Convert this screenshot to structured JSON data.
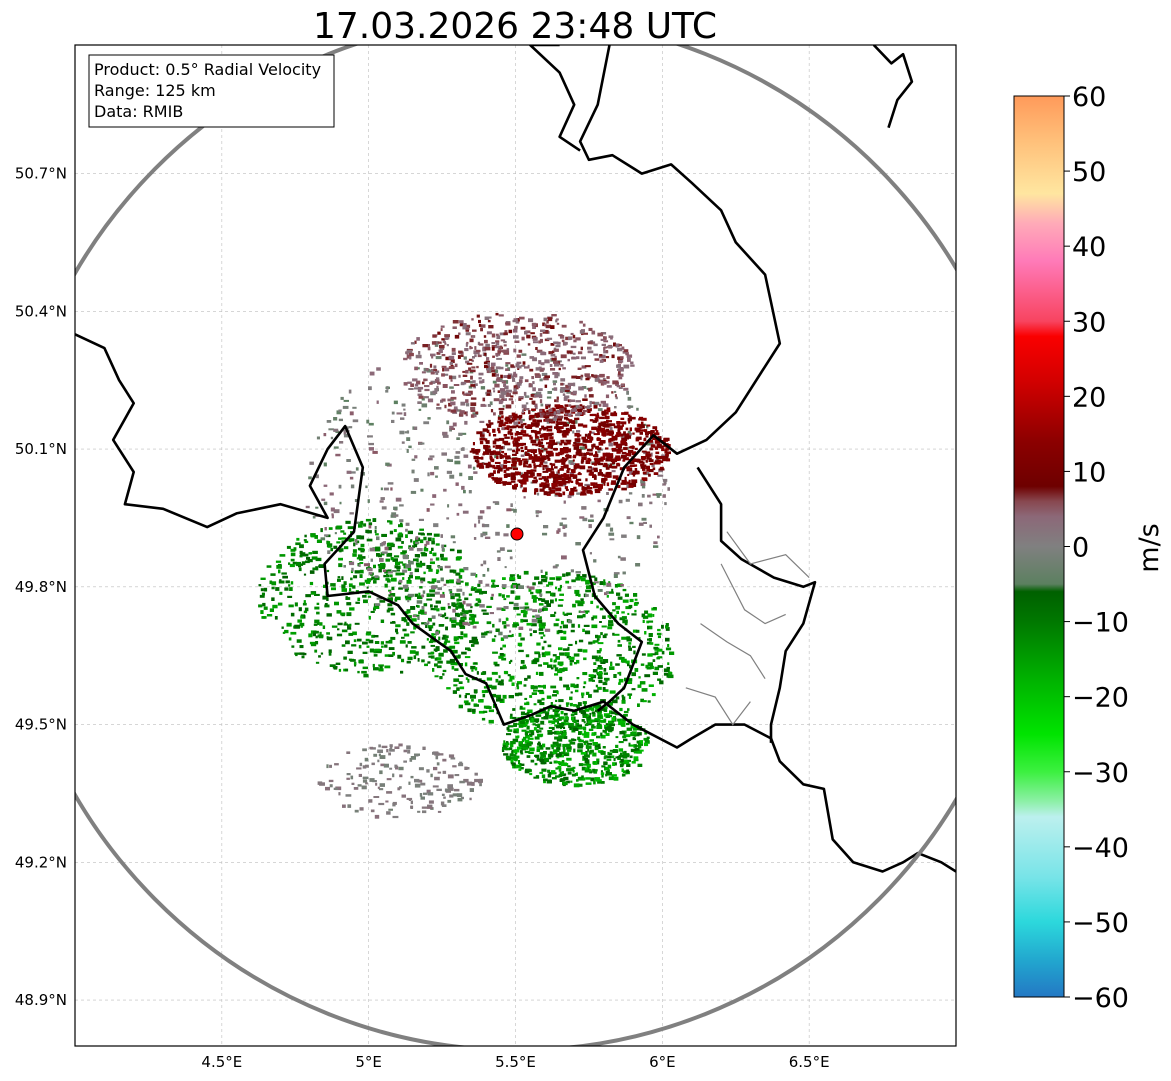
{
  "chart_data": {
    "type": "heatmap",
    "title": "17.03.2026 23:48 UTC",
    "info_box": [
      "Product: 0.5° Radial Velocity",
      "Range: 125 km",
      "Data: RMIB"
    ],
    "projection": "PlateCarree",
    "lon_range": [
      4.0,
      7.0
    ],
    "lat_range": [
      48.8,
      50.98
    ],
    "lon_ticks": [
      4.5,
      5.0,
      5.5,
      6.0,
      6.5
    ],
    "lon_tick_labels": [
      "4.5°E",
      "5°E",
      "5.5°E",
      "6°E",
      "6.5°E"
    ],
    "lat_ticks": [
      48.9,
      49.2,
      49.5,
      49.8,
      50.1,
      50.4,
      50.7
    ],
    "lat_tick_labels": [
      "48.9°N",
      "49.2°N",
      "49.5°N",
      "49.8°N",
      "50.1°N",
      "50.4°N",
      "50.7°N"
    ],
    "radar_site": {
      "lon": 5.505,
      "lat": 49.915,
      "marker_color": "#ff0000"
    },
    "range_ring_km": 125,
    "colorbar": {
      "label": "m/s",
      "range": [
        -60,
        60
      ],
      "ticks": [
        -60,
        -50,
        -40,
        -30,
        -20,
        -10,
        0,
        10,
        20,
        30,
        40,
        50,
        60
      ],
      "tick_labels": [
        "−60",
        "−50",
        "−40",
        "−30",
        "−20",
        "−10",
        "0",
        "10",
        "20",
        "30",
        "40",
        "50",
        "60"
      ],
      "stops": [
        {
          "value": -60,
          "color": "#2378c4"
        },
        {
          "value": -55,
          "color": "#22a8cf"
        },
        {
          "value": -50,
          "color": "#2cd8dc"
        },
        {
          "value": -44,
          "color": "#78e4e8"
        },
        {
          "value": -36,
          "color": "#bcf0ee"
        },
        {
          "value": -34,
          "color": "#8ef0a8"
        },
        {
          "value": -30,
          "color": "#3cf040"
        },
        {
          "value": -25,
          "color": "#00e400"
        },
        {
          "value": -18,
          "color": "#00b400"
        },
        {
          "value": -10,
          "color": "#007800"
        },
        {
          "value": -6,
          "color": "#006000"
        },
        {
          "value": -5,
          "color": "#5c8060"
        },
        {
          "value": 0,
          "color": "#808080"
        },
        {
          "value": 4,
          "color": "#8c6878"
        },
        {
          "value": 6,
          "color": "#884850"
        },
        {
          "value": 8,
          "color": "#6e0000"
        },
        {
          "value": 14,
          "color": "#8c0000"
        },
        {
          "value": 22,
          "color": "#d20000"
        },
        {
          "value": 28,
          "color": "#fa0000"
        },
        {
          "value": 30,
          "color": "#f84460"
        },
        {
          "value": 38,
          "color": "#ff7ab8"
        },
        {
          "value": 43,
          "color": "#ffaab8"
        },
        {
          "value": 47,
          "color": "#ffe6a0"
        },
        {
          "value": 54,
          "color": "#ffc07a"
        },
        {
          "value": 60,
          "color": "#ff9a5a"
        }
      ]
    },
    "velocity_regions": [
      {
        "name": "inbound-main",
        "lon": 5.62,
        "lat": 49.66,
        "rlon": 0.42,
        "rlat": 0.18,
        "vmin": -18,
        "vmax": -6,
        "density": 0.55
      },
      {
        "name": "inbound-west",
        "lon": 5.0,
        "lat": 49.78,
        "rlon": 0.38,
        "rlat": 0.17,
        "vmin": -16,
        "vmax": -6,
        "density": 0.45
      },
      {
        "name": "inbound-south",
        "lon": 5.7,
        "lat": 49.46,
        "rlon": 0.25,
        "rlat": 0.09,
        "vmin": -20,
        "vmax": -6,
        "density": 0.4
      },
      {
        "name": "near-zero",
        "lon": 5.4,
        "lat": 50.02,
        "rlon": 0.62,
        "rlat": 0.33,
        "vmin": -5,
        "vmax": 5,
        "density": 0.45
      },
      {
        "name": "outbound-main",
        "lon": 5.68,
        "lat": 50.1,
        "rlon": 0.34,
        "rlat": 0.1,
        "vmin": 8,
        "vmax": 14,
        "density": 0.7
      },
      {
        "name": "outbound-north",
        "lon": 5.5,
        "lat": 50.28,
        "rlon": 0.4,
        "rlat": 0.12,
        "vmin": 2,
        "vmax": 8,
        "density": 0.45
      },
      {
        "name": "trail-southwest",
        "lon": 5.1,
        "lat": 49.38,
        "rlon": 0.28,
        "rlat": 0.08,
        "vmin": -2,
        "vmax": 3,
        "density": 0.12
      }
    ],
    "borders": [
      [
        [
          4.0,
          50.35
        ],
        [
          4.1,
          50.32
        ],
        [
          4.15,
          50.25
        ],
        [
          4.2,
          50.2
        ],
        [
          4.13,
          50.12
        ],
        [
          4.2,
          50.05
        ],
        [
          4.17,
          49.98
        ],
        [
          4.3,
          49.97
        ],
        [
          4.45,
          49.93
        ],
        [
          4.55,
          49.96
        ],
        [
          4.7,
          49.98
        ],
        [
          4.86,
          49.95
        ],
        [
          4.8,
          50.02
        ],
        [
          4.86,
          50.1
        ],
        [
          4.92,
          50.15
        ],
        [
          4.98,
          50.06
        ],
        [
          4.95,
          49.92
        ],
        [
          4.85,
          49.85
        ],
        [
          4.86,
          49.78
        ],
        [
          5.0,
          49.79
        ],
        [
          5.1,
          49.76
        ],
        [
          5.15,
          49.72
        ],
        [
          5.28,
          49.66
        ],
        [
          5.33,
          49.61
        ],
        [
          5.4,
          49.59
        ],
        [
          5.46,
          49.5
        ],
        [
          5.55,
          49.52
        ],
        [
          5.62,
          49.54
        ],
        [
          5.7,
          49.53
        ],
        [
          5.8,
          49.55
        ],
        [
          5.9,
          49.5
        ],
        [
          6.05,
          49.45
        ],
        [
          6.1,
          49.47
        ],
        [
          6.18,
          49.5
        ],
        [
          6.28,
          49.5
        ],
        [
          6.37,
          49.47
        ],
        [
          6.4,
          49.42
        ],
        [
          6.48,
          49.37
        ],
        [
          6.55,
          49.36
        ],
        [
          6.58,
          49.25
        ],
        [
          6.65,
          49.2
        ],
        [
          6.75,
          49.18
        ],
        [
          6.82,
          49.2
        ],
        [
          6.87,
          49.22
        ],
        [
          6.95,
          49.2
        ],
        [
          7.0,
          49.18
        ]
      ],
      [
        [
          5.82,
          50.98
        ],
        [
          5.78,
          50.85
        ],
        [
          5.72,
          50.77
        ],
        [
          5.75,
          50.73
        ],
        [
          5.83,
          50.74
        ],
        [
          5.93,
          50.7
        ],
        [
          6.03,
          50.72
        ],
        [
          6.1,
          50.68
        ],
        [
          6.2,
          50.62
        ],
        [
          6.25,
          50.55
        ],
        [
          6.35,
          50.48
        ],
        [
          6.37,
          50.42
        ],
        [
          6.4,
          50.33
        ],
        [
          6.35,
          50.28
        ],
        [
          6.25,
          50.18
        ],
        [
          6.15,
          50.12
        ],
        [
          6.05,
          50.09
        ],
        [
          5.97,
          50.13
        ],
        [
          5.87,
          50.06
        ],
        [
          5.8,
          49.95
        ],
        [
          5.73,
          49.88
        ],
        [
          5.77,
          49.78
        ],
        [
          5.85,
          49.72
        ],
        [
          5.93,
          49.68
        ],
        [
          5.87,
          49.58
        ],
        [
          5.82,
          49.55
        ],
        [
          5.78,
          49.53
        ]
      ],
      [
        [
          6.12,
          50.06
        ],
        [
          6.2,
          49.98
        ],
        [
          6.2,
          49.9
        ],
        [
          6.27,
          49.86
        ],
        [
          6.38,
          49.82
        ],
        [
          6.48,
          49.8
        ],
        [
          6.52,
          49.81
        ],
        [
          6.48,
          49.72
        ],
        [
          6.42,
          49.66
        ],
        [
          6.4,
          49.58
        ],
        [
          6.37,
          49.5
        ],
        [
          6.37,
          49.46
        ]
      ],
      [
        [
          5.65,
          50.98
        ],
        [
          5.55,
          50.98
        ],
        [
          5.65,
          50.92
        ],
        [
          5.7,
          50.85
        ],
        [
          5.65,
          50.78
        ],
        [
          5.72,
          50.75
        ]
      ],
      [
        [
          6.72,
          50.98
        ],
        [
          6.78,
          50.94
        ],
        [
          6.82,
          50.96
        ],
        [
          6.85,
          50.9
        ],
        [
          6.8,
          50.86
        ],
        [
          6.77,
          50.8
        ]
      ]
    ],
    "inner_borders": [
      [
        [
          6.22,
          49.92
        ],
        [
          6.3,
          49.85
        ],
        [
          6.42,
          49.87
        ],
        [
          6.5,
          49.82
        ]
      ],
      [
        [
          6.2,
          49.85
        ],
        [
          6.28,
          49.75
        ],
        [
          6.35,
          49.72
        ],
        [
          6.42,
          49.74
        ]
      ],
      [
        [
          6.13,
          49.72
        ],
        [
          6.22,
          49.68
        ],
        [
          6.3,
          49.65
        ],
        [
          6.35,
          49.6
        ]
      ],
      [
        [
          6.08,
          49.58
        ],
        [
          6.18,
          49.56
        ],
        [
          6.24,
          49.5
        ],
        [
          6.3,
          49.55
        ]
      ]
    ]
  }
}
